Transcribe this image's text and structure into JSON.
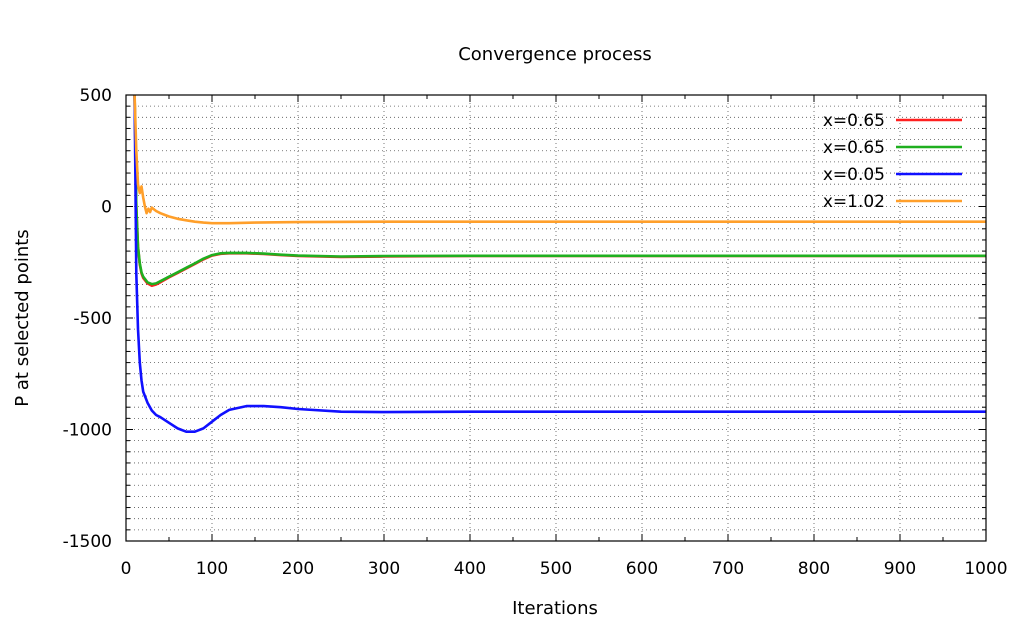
{
  "chart_data": {
    "type": "line",
    "title": "Convergence process",
    "xlabel": "Iterations",
    "ylabel": "P at selected points",
    "xlim": [
      0,
      1000
    ],
    "ylim": [
      -1500,
      500
    ],
    "xticks": [
      0,
      100,
      200,
      300,
      400,
      500,
      600,
      700,
      800,
      900,
      1000
    ],
    "yticks": [
      500,
      0,
      -500,
      -1000,
      -1500
    ],
    "grid": true,
    "legend_position": "top-right",
    "series": [
      {
        "name": "x=0.65",
        "color": "#ff2020",
        "x": [
          10,
          12,
          14,
          16,
          18,
          20,
          25,
          30,
          35,
          40,
          50,
          60,
          70,
          80,
          90,
          100,
          110,
          120,
          140,
          160,
          180,
          200,
          250,
          300,
          400,
          500,
          600,
          700,
          800,
          900,
          1000
        ],
        "y": [
          500,
          0,
          -180,
          -260,
          -300,
          -320,
          -345,
          -355,
          -350,
          -340,
          -318,
          -298,
          -278,
          -258,
          -237,
          -220,
          -212,
          -210,
          -210,
          -213,
          -218,
          -222,
          -226,
          -224,
          -222,
          -222,
          -222,
          -222,
          -222,
          -222,
          -222
        ]
      },
      {
        "name": "x=0.65",
        "color": "#1faf1f",
        "x": [
          10,
          12,
          14,
          16,
          18,
          20,
          25,
          30,
          35,
          40,
          50,
          60,
          70,
          80,
          90,
          100,
          110,
          120,
          140,
          160,
          180,
          200,
          250,
          300,
          400,
          500,
          600,
          700,
          800,
          900,
          1000
        ],
        "y": [
          500,
          0,
          -180,
          -255,
          -295,
          -315,
          -340,
          -348,
          -345,
          -335,
          -315,
          -295,
          -275,
          -255,
          -234,
          -218,
          -210,
          -208,
          -208,
          -211,
          -216,
          -220,
          -224,
          -222,
          -221,
          -221,
          -221,
          -221,
          -221,
          -221,
          -221
        ]
      },
      {
        "name": "x=0.05",
        "color": "#1010ff",
        "x": [
          10,
          12,
          14,
          16,
          18,
          20,
          25,
          30,
          35,
          40,
          50,
          60,
          70,
          80,
          90,
          100,
          110,
          120,
          140,
          160,
          180,
          200,
          250,
          300,
          400,
          500,
          600,
          700,
          800,
          900,
          1000
        ],
        "y": [
          500,
          -300,
          -550,
          -700,
          -780,
          -830,
          -880,
          -915,
          -935,
          -945,
          -970,
          -995,
          -1010,
          -1010,
          -995,
          -965,
          -935,
          -912,
          -895,
          -895,
          -900,
          -908,
          -920,
          -922,
          -920,
          -920,
          -920,
          -920,
          -920,
          -920,
          -920
        ]
      },
      {
        "name": "x=1.02",
        "color": "#ff9f2a",
        "x": [
          10,
          12,
          14,
          16,
          18,
          20,
          22,
          24,
          26,
          28,
          30,
          35,
          40,
          50,
          60,
          70,
          80,
          90,
          100,
          120,
          150,
          200,
          300,
          400,
          500,
          600,
          700,
          800,
          900,
          1000
        ],
        "y": [
          500,
          250,
          100,
          60,
          90,
          40,
          0,
          -30,
          -10,
          -25,
          -5,
          -20,
          -30,
          -45,
          -55,
          -62,
          -68,
          -72,
          -75,
          -75,
          -72,
          -70,
          -68,
          -68,
          -68,
          -68,
          -68,
          -68,
          -68,
          -68
        ]
      }
    ]
  }
}
